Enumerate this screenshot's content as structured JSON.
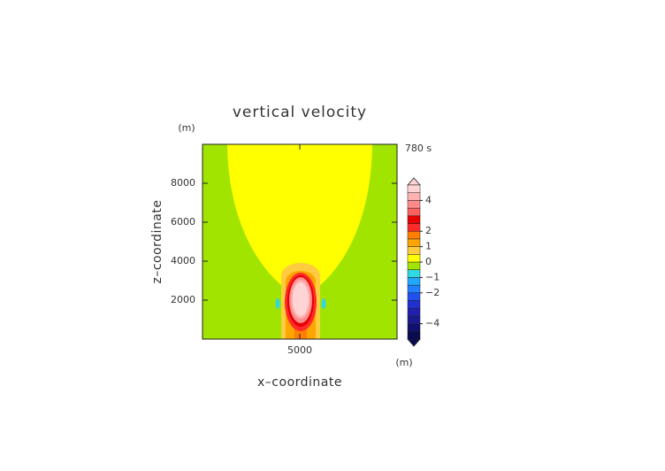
{
  "chart_data": {
    "type": "contour",
    "title": "vertical velocity",
    "time_label": "780 s",
    "x_label": "x–coordinate",
    "y_label": "z–coordinate",
    "x_unit": "(m)",
    "y_unit": "(m)",
    "xlim": [
      0,
      10000
    ],
    "ylim": [
      0,
      10000
    ],
    "xticks": [
      5000
    ],
    "yticks": [
      2000,
      4000,
      6000,
      8000
    ],
    "colorbar": {
      "levels": [
        -5,
        -4.5,
        -4,
        -3.5,
        -3,
        -2.5,
        -2,
        -1.5,
        -1,
        -0.5,
        0,
        0.5,
        1,
        1.5,
        2,
        2.5,
        3,
        3.5,
        4,
        4.5,
        5
      ],
      "colors": [
        "#0a0a50",
        "#101070",
        "#1a1a90",
        "#2020b0",
        "#2030d0",
        "#2050f0",
        "#2080ff",
        "#20a8ff",
        "#30d8e0",
        "#a0e400",
        "#ffff00",
        "#ffcc40",
        "#ffa500",
        "#ff7f00",
        "#ff2a2a",
        "#e60000",
        "#ff6060",
        "#ff8c8c",
        "#ffb0b0",
        "#ffd4d4"
      ],
      "ticks": [
        {
          "value": -4,
          "label": "−4"
        },
        {
          "value": -2,
          "label": "−2"
        },
        {
          "value": -1,
          "label": "−1"
        },
        0,
        1,
        2,
        4
      ]
    }
  }
}
